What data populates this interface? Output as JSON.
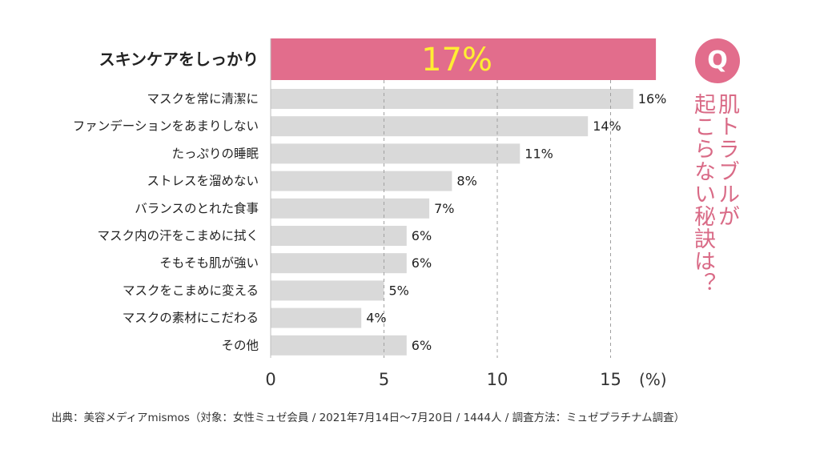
{
  "chart_data": {
    "type": "bar",
    "orientation": "horizontal",
    "categories": [
      "スキンケアをしっかり",
      "マスクを常に清潔に",
      "ファンデーションをあまりしない",
      "たっぷりの睡眠",
      "ストレスを溜めない",
      "バランスのとれた食事",
      "マスク内の汗をこまめに拭く",
      "そもそも肌が強い",
      "マスクをこまめに変える",
      "マスクの素材にこだわる",
      "その他"
    ],
    "values": [
      17,
      16,
      14,
      11,
      8,
      7,
      6,
      6,
      5,
      4,
      6
    ],
    "value_labels": [
      "17%",
      "16%",
      "14%",
      "11%",
      "8%",
      "7%",
      "6%",
      "6%",
      "5%",
      "4%",
      "6%"
    ],
    "highlight_index": 0,
    "xlim": [
      0,
      17
    ],
    "x_ticks": [
      0,
      5,
      10,
      15
    ],
    "x_tick_labels": [
      "0",
      "5",
      "10",
      "15"
    ],
    "x_unit_label": "(%)",
    "grid": "vertical dashed at 5, 10, 15",
    "colors": {
      "highlight_bar": "#e26d8c",
      "bar": "#d9d9d9",
      "highlight_label": "#ffee33",
      "accent": "#e26d8c"
    }
  },
  "question": {
    "badge": "Q",
    "line1": "肌トラブルが",
    "line2": "起こらない秘訣は？"
  },
  "source": "出典：美容メディアmismos（対象：女性ミュゼ会員 / 2021年7月14日～7月20日 / 1444人 / 調査方法：ミュゼプラチナム調査）"
}
